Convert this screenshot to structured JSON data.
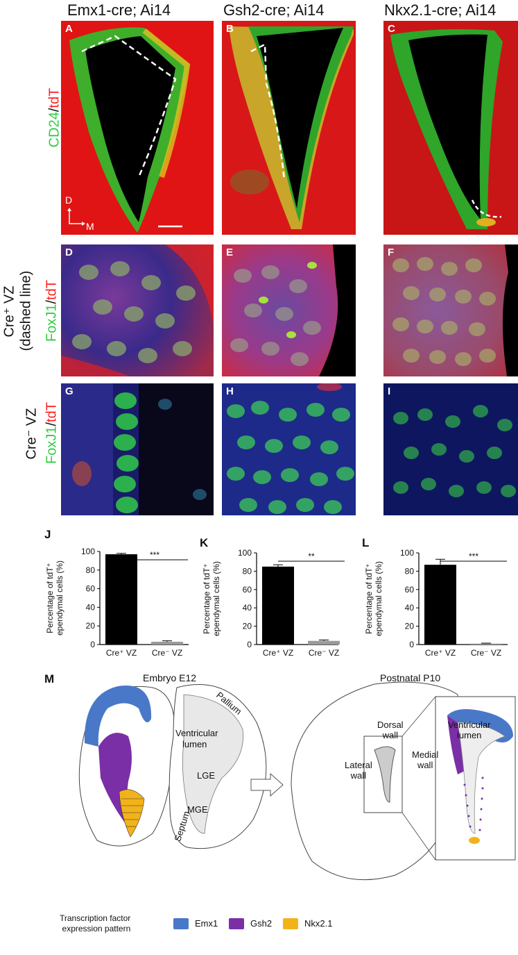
{
  "columns": [
    "Emx1-cre; Ai14",
    "Gsh2-cre; Ai14",
    "Nkx2.1-cre; Ai14"
  ],
  "row_labels": {
    "row1": {
      "green": "CD24",
      "sep": "/",
      "red": "tdT"
    },
    "row2_title": "Cre⁺ VZ",
    "row2_sub": "(dashed line)",
    "row2_marker": {
      "green": "FoxJ1",
      "sep": "/",
      "red": "tdT"
    },
    "row3_title": "Cre⁻ VZ",
    "row3_marker": {
      "green": "FoxJ1",
      "sep": "/",
      "red": "tdT"
    }
  },
  "panel_letters": [
    "A",
    "B",
    "C",
    "D",
    "E",
    "F",
    "G",
    "H",
    "I"
  ],
  "orientation": {
    "dorsal": "D",
    "medial": "M"
  },
  "chart_data": [
    {
      "label": "J",
      "type": "bar",
      "categories": [
        "Cre⁺ VZ",
        "Cre⁻ VZ"
      ],
      "values": [
        97,
        3
      ],
      "errors": [
        1,
        1
      ],
      "ylabel_line1": "Percentage of tdT⁺",
      "ylabel_line2": "ependymal cells (%)",
      "ylim": [
        0,
        100
      ],
      "yticks": [
        0,
        20,
        40,
        60,
        80,
        100
      ],
      "significance": "***",
      "colors": [
        "#000000",
        "#9a9a9a"
      ]
    },
    {
      "label": "K",
      "type": "bar",
      "categories": [
        "Cre⁺ VZ",
        "Cre⁻ VZ"
      ],
      "values": [
        85,
        4
      ],
      "errors": [
        2,
        1
      ],
      "ylabel_line1": "Percentage of tdT⁺",
      "ylabel_line2": "ependymal cells (%)",
      "ylim": [
        0,
        100
      ],
      "yticks": [
        0,
        20,
        40,
        60,
        80,
        100
      ],
      "significance": "**",
      "colors": [
        "#000000",
        "#9a9a9a"
      ]
    },
    {
      "label": "L",
      "type": "bar",
      "categories": [
        "Cre⁺ VZ",
        "Cre⁻ VZ"
      ],
      "values": [
        87,
        1
      ],
      "errors": [
        6,
        0.5
      ],
      "ylabel_line1": "Percentage of tdT⁺",
      "ylabel_line2": "ependymal cells (%)",
      "ylim": [
        0,
        100
      ],
      "yticks": [
        0,
        20,
        40,
        60,
        80,
        100
      ],
      "significance": "***",
      "colors": [
        "#000000",
        "#9a9a9a"
      ]
    }
  ],
  "schematic": {
    "label": "M",
    "embryo_title": "Embryo E12",
    "postnatal_title": "Postnatal P10",
    "regions": {
      "pallium": "Pallium",
      "ventricular": "Ventricular",
      "lumen": "lumen",
      "lge": "LGE",
      "mge": "MGE",
      "septum": "Septum"
    },
    "walls": {
      "dorsal1": "Dorsal",
      "dorsal2": "wall",
      "lateral1": "Lateral",
      "lateral2": "wall",
      "medial1": "Medial",
      "medial2": "wall"
    },
    "inset": {
      "line1": "Ventricular",
      "line2": "lumen"
    }
  },
  "legend": {
    "title_line1": "Transcription factor",
    "title_line2": "expression pattern",
    "items": [
      {
        "name": "Emx1",
        "color": "#4a78c8"
      },
      {
        "name": "Gsh2",
        "color": "#7b2fa6"
      },
      {
        "name": "Nkx2.1",
        "color": "#f2b31a"
      }
    ]
  }
}
